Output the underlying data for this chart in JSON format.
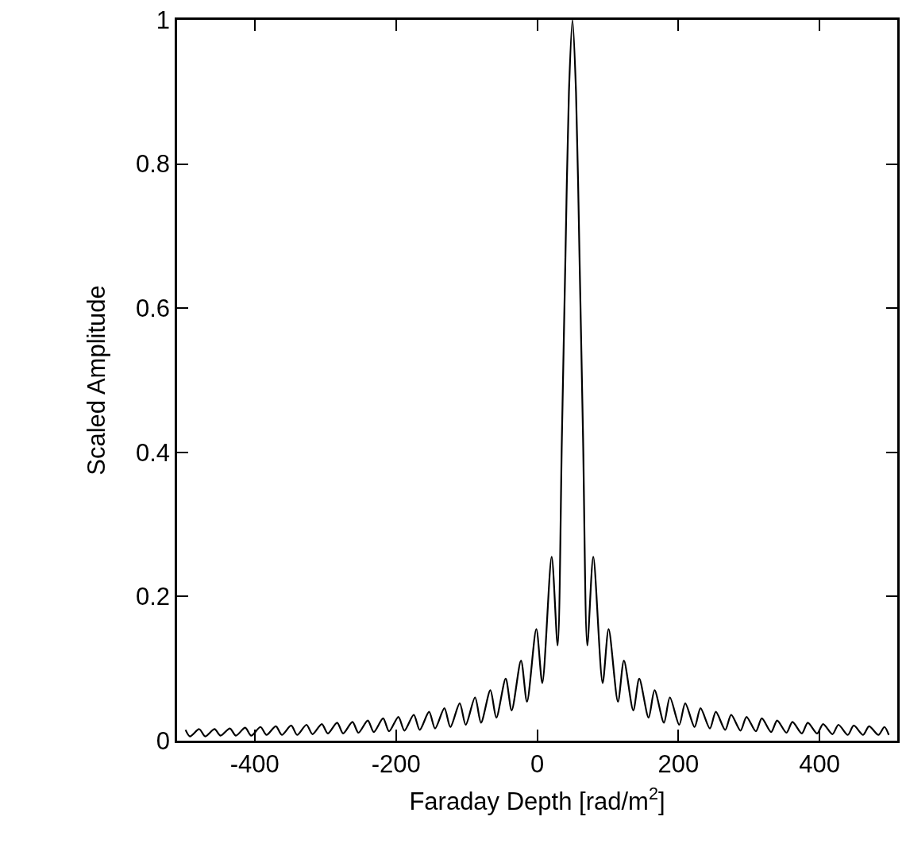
{
  "chart_data": {
    "type": "line",
    "xlabel": "Faraday Depth [rad/m$^{2}$]",
    "ylabel": "Scaled Amplitude",
    "x": [
      -498,
      -491.8,
      -478.6,
      -470.1,
      -456.9,
      -448.4,
      -435.2,
      -426.7,
      -413.5,
      -405,
      -391.8,
      -383.3,
      -370.1,
      -361.6,
      -348.4,
      -339.9,
      -326.7,
      -318.2,
      -305,
      -296.5,
      -283.3,
      -274.8,
      -261.6,
      -253.1,
      -239.9,
      -231.4,
      -218.2,
      -209.7,
      -196.5,
      -188,
      -174.8,
      -166.3,
      -153.1,
      -144.6,
      -131.4,
      -122.9,
      -109.7,
      -101.2,
      -88,
      -79.5,
      -66.3,
      -57.8,
      -44.6,
      -36.1,
      -22.9,
      -14.4,
      -1.2,
      7.3,
      20.5,
      29,
      35,
      40,
      45,
      50,
      55,
      60,
      65,
      71,
      79.5,
      92.7,
      101.2,
      114.4,
      122.9,
      136.1,
      144.6,
      157.8,
      166.3,
      179.5,
      188,
      201.2,
      209.7,
      222.9,
      231.4,
      244.6,
      253.1,
      266.3,
      274.8,
      288,
      296.5,
      309.7,
      318.2,
      331.4,
      339.9,
      353.1,
      361.6,
      374.8,
      383.3,
      396.5,
      405,
      418.2,
      426.7,
      439.9,
      448.4,
      461.6,
      470.1,
      483.3,
      491.8,
      498
    ],
    "series": [
      {
        "color": "#000000",
        "values": [
          0.015,
          0.006,
          0.016,
          0.006,
          0.016,
          0.007,
          0.017,
          0.007,
          0.018,
          0.007,
          0.019,
          0.008,
          0.02,
          0.008,
          0.021,
          0.008,
          0.022,
          0.009,
          0.023,
          0.01,
          0.025,
          0.01,
          0.026,
          0.011,
          0.028,
          0.012,
          0.031,
          0.013,
          0.033,
          0.014,
          0.036,
          0.015,
          0.04,
          0.017,
          0.045,
          0.019,
          0.052,
          0.022,
          0.06,
          0.025,
          0.07,
          0.032,
          0.086,
          0.042,
          0.111,
          0.054,
          0.155,
          0.08,
          0.255,
          0.132,
          0.42,
          0.67,
          0.9,
          1,
          0.9,
          0.67,
          0.42,
          0.132,
          0.255,
          0.08,
          0.155,
          0.054,
          0.111,
          0.042,
          0.086,
          0.032,
          0.07,
          0.025,
          0.06,
          0.022,
          0.052,
          0.019,
          0.045,
          0.017,
          0.04,
          0.015,
          0.036,
          0.014,
          0.033,
          0.013,
          0.031,
          0.012,
          0.028,
          0.011,
          0.026,
          0.01,
          0.025,
          0.01,
          0.023,
          0.009,
          0.022,
          0.008,
          0.021,
          0.008,
          0.02,
          0.008,
          0.019,
          0.008
        ]
      }
    ],
    "xlim": [
      -510,
      510
    ],
    "xticks": [
      -400,
      -200,
      0,
      200,
      400
    ],
    "ylim": [
      0,
      1
    ],
    "yticks": [
      0,
      0.2,
      0.4,
      0.6,
      0.8,
      1
    ],
    "marker": "none",
    "line_style": "solid"
  }
}
